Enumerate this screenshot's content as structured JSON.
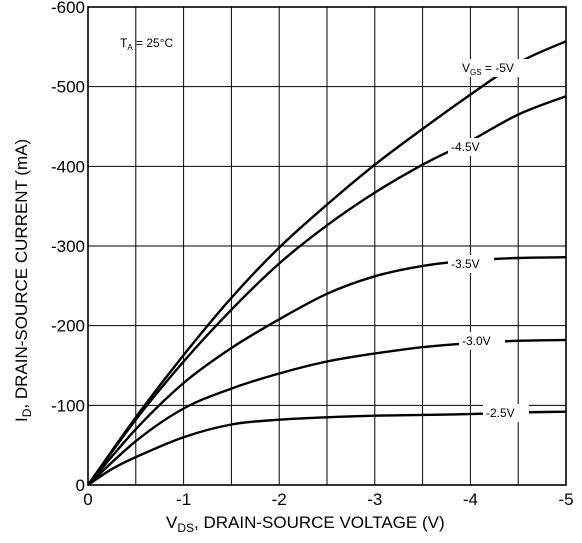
{
  "chart_data": {
    "type": "line",
    "title": "",
    "xlabel": {
      "main": "V",
      "sub": "DS",
      "rest": ", DRAIN-SOURCE VOLTAGE (V)"
    },
    "ylabel": {
      "main": "I",
      "sub": "D",
      "rest": ", DRAIN-SOURCE CURRENT (mA)"
    },
    "xlim": [
      0,
      -5
    ],
    "ylim": [
      0,
      -600
    ],
    "x_tick_labels": [
      "0",
      "-1",
      "-2",
      "-3",
      "-4",
      "-5"
    ],
    "y_tick_labels": [
      "0",
      "-100",
      "-200",
      "-300",
      "-400",
      "-500",
      "-600"
    ],
    "grid": true,
    "annotation": {
      "main": "T",
      "sub": "A",
      "rest": " = 25°C"
    },
    "series_label_prefix": {
      "main": "V",
      "sub": "GS",
      "rest": " = "
    },
    "series": [
      {
        "name": "-5V",
        "x": [
          0,
          -0.5,
          -1,
          -1.5,
          -2,
          -2.5,
          -3,
          -3.5,
          -4,
          -4.5,
          -5
        ],
        "y": [
          0,
          -85,
          -163,
          -235,
          -298,
          -352,
          -402,
          -447,
          -490,
          -530,
          -557
        ]
      },
      {
        "name": "-4.5V",
        "x": [
          0,
          -0.5,
          -1,
          -1.5,
          -2,
          -2.5,
          -3,
          -3.5,
          -4,
          -4.5,
          -5
        ],
        "y": [
          0,
          -82,
          -155,
          -220,
          -278,
          -326,
          -367,
          -402,
          -432,
          -465,
          -488
        ]
      },
      {
        "name": "-3.5V",
        "x": [
          0,
          -0.5,
          -1,
          -1.5,
          -2,
          -2.5,
          -3,
          -3.5,
          -4,
          -4.5,
          -5
        ],
        "y": [
          0,
          -70,
          -128,
          -172,
          -208,
          -240,
          -262,
          -275,
          -282,
          -285,
          -286
        ]
      },
      {
        "name": "-3.0V",
        "x": [
          0,
          -0.5,
          -1,
          -1.5,
          -2,
          -2.5,
          -3,
          -3.5,
          -4,
          -4.5,
          -5
        ],
        "y": [
          0,
          -55,
          -96,
          -121,
          -140,
          -155,
          -165,
          -173,
          -178,
          -181,
          -182
        ]
      },
      {
        "name": "-2.5V",
        "x": [
          0,
          -0.25,
          -0.5,
          -1,
          -1.5,
          -2,
          -2.5,
          -3,
          -3.5,
          -4,
          -4.5,
          -5
        ],
        "y": [
          0,
          -20,
          -35,
          -60,
          -76,
          -82,
          -85,
          -87,
          -88,
          -89,
          -91,
          -92
        ]
      }
    ]
  }
}
